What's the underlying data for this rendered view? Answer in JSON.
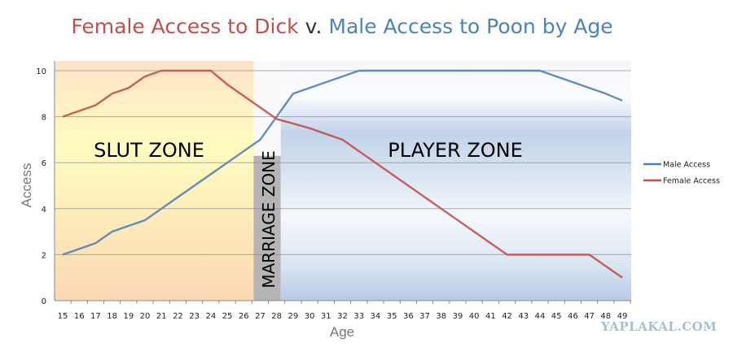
{
  "chart_data": {
    "type": "line",
    "title": {
      "female_part": "Female Access to Dick",
      "separator": "v.",
      "male_part": "Male Access to Poon by Age"
    },
    "xlabel": "Age",
    "ylabel": "Access",
    "x": [
      15,
      16,
      17,
      18,
      19,
      20,
      21,
      22,
      23,
      24,
      25,
      26,
      27,
      28,
      29,
      30,
      31,
      32,
      33,
      34,
      35,
      36,
      37,
      38,
      39,
      40,
      41,
      42,
      43,
      44,
      45,
      46,
      47,
      48,
      49
    ],
    "ylim": [
      0,
      10
    ],
    "yticks": [
      0,
      2,
      4,
      6,
      8,
      10
    ],
    "grid": true,
    "legend_position": "right",
    "series": [
      {
        "name": "Male Access",
        "color": "#4f81bd",
        "values": [
          2,
          2.25,
          2.5,
          3,
          3.25,
          3.5,
          4,
          4.5,
          5,
          5.5,
          6,
          6.5,
          7,
          8,
          9,
          9.25,
          9.5,
          9.75,
          10,
          10,
          10,
          10,
          10,
          10,
          10,
          10,
          10,
          10,
          10,
          10,
          9.75,
          9.5,
          9.25,
          9,
          8.7
        ]
      },
      {
        "name": "Female Access",
        "color": "#c0504d",
        "values": [
          8,
          8.25,
          8.5,
          9,
          9.25,
          9.75,
          10,
          10,
          10,
          10,
          9.4,
          8.9,
          8.4,
          7.9,
          7.7,
          7.5,
          7.25,
          7,
          6.5,
          6,
          5.5,
          5,
          4.5,
          4,
          3.5,
          3,
          2.5,
          2,
          2,
          2,
          2,
          2,
          2,
          1.5,
          1
        ]
      }
    ],
    "annotations": [
      {
        "label": "SLUT ZONE",
        "from_age": 14.5,
        "to_age": 26.6
      },
      {
        "label": "MARRIAGE ZONE",
        "from_age": 26.6,
        "to_age": 28.25
      },
      {
        "label": "PLAYER ZONE",
        "from_age": 28.25,
        "to_age": 49.5
      }
    ]
  },
  "watermark": "YAPLAKAL.COM"
}
